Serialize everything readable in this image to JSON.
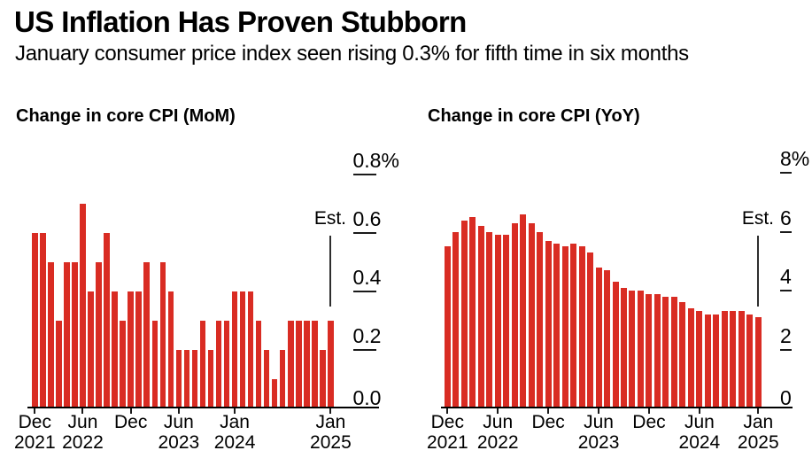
{
  "header": {
    "title": "US Inflation Has Proven Stubborn",
    "subtitle": "January consumer price index seen rising 0.3% for fifth time in six months"
  },
  "colors": {
    "bar": "#d92c23",
    "axis": "#000000",
    "tick": "#1a1a1a",
    "est_line": "#2e2e2e",
    "text": "#000000",
    "background": "#ffffff"
  },
  "chart_data": [
    {
      "type": "bar",
      "title": "Change in core CPI (MoM)",
      "ylabel": "",
      "xlabel": "",
      "ylim": [
        0,
        0.8
      ],
      "grid": false,
      "legend": "none",
      "categories": [
        "Dec 2021",
        "Jan 2022",
        "Feb 2022",
        "Mar 2022",
        "Apr 2022",
        "May 2022",
        "Jun 2022",
        "Jul 2022",
        "Aug 2022",
        "Sep 2022",
        "Oct 2022",
        "Nov 2022",
        "Dec 2022",
        "Jan 2023",
        "Feb 2023",
        "Mar 2023",
        "Apr 2023",
        "May 2023",
        "Jun 2023",
        "Jul 2023",
        "Aug 2023",
        "Sep 2023",
        "Oct 2023",
        "Nov 2023",
        "Dec 2023",
        "Jan 2024",
        "Feb 2024",
        "Mar 2024",
        "Apr 2024",
        "May 2024",
        "Jun 2024",
        "Jul 2024",
        "Aug 2024",
        "Sep 2024",
        "Oct 2024",
        "Nov 2024",
        "Dec 2024",
        "Jan 2025"
      ],
      "values": [
        0.6,
        0.6,
        0.5,
        0.3,
        0.5,
        0.5,
        0.7,
        0.4,
        0.5,
        0.6,
        0.4,
        0.3,
        0.4,
        0.4,
        0.5,
        0.3,
        0.5,
        0.4,
        0.2,
        0.2,
        0.2,
        0.3,
        0.2,
        0.3,
        0.3,
        0.4,
        0.4,
        0.4,
        0.3,
        0.2,
        0.1,
        0.2,
        0.3,
        0.3,
        0.3,
        0.3,
        0.2,
        0.3
      ],
      "estimate": {
        "label": "Est.",
        "category": "Jan 2025",
        "bar": 37,
        "value": 0.3
      },
      "yticks": [
        {
          "label": "0.8%",
          "value": 0.8
        },
        {
          "label": "0.6",
          "value": 0.6
        },
        {
          "label": "0.4",
          "value": 0.4
        },
        {
          "label": "0.2",
          "value": 0.2
        },
        {
          "label": "0.0",
          "value": 0.0
        }
      ],
      "xticks": [
        {
          "line1": "Dec",
          "line2": "2021",
          "bar": 0
        },
        {
          "line1": "Jun",
          "line2": "2022",
          "bar": 6
        },
        {
          "line1": "Dec",
          "line2": "",
          "bar": 12
        },
        {
          "line1": "Jun",
          "line2": "2023",
          "bar": 18
        },
        {
          "line1": "Jan",
          "line2": "2024",
          "bar": 25
        },
        {
          "line1": "Jan",
          "line2": "2025",
          "bar": 37
        }
      ]
    },
    {
      "type": "bar",
      "title": "Change in core CPI (YoY)",
      "ylabel": "",
      "xlabel": "",
      "ylim": [
        0,
        8
      ],
      "grid": false,
      "legend": "none",
      "categories": [
        "Dec 2021",
        "Jan 2022",
        "Feb 2022",
        "Mar 2022",
        "Apr 2022",
        "May 2022",
        "Jun 2022",
        "Jul 2022",
        "Aug 2022",
        "Sep 2022",
        "Oct 2022",
        "Nov 2022",
        "Dec 2022",
        "Jan 2023",
        "Feb 2023",
        "Mar 2023",
        "Apr 2023",
        "May 2023",
        "Jun 2023",
        "Jul 2023",
        "Aug 2023",
        "Sep 2023",
        "Oct 2023",
        "Nov 2023",
        "Dec 2023",
        "Jan 2024",
        "Feb 2024",
        "Mar 2024",
        "Apr 2024",
        "May 2024",
        "Jun 2024",
        "Jul 2024",
        "Aug 2024",
        "Sep 2024",
        "Oct 2024",
        "Nov 2024",
        "Dec 2024",
        "Jan 2025"
      ],
      "values": [
        5.5,
        6.0,
        6.4,
        6.5,
        6.2,
        6.0,
        5.9,
        5.9,
        6.3,
        6.6,
        6.3,
        6.0,
        5.7,
        5.6,
        5.5,
        5.6,
        5.5,
        5.3,
        4.8,
        4.7,
        4.3,
        4.1,
        4.0,
        4.0,
        3.9,
        3.9,
        3.8,
        3.8,
        3.6,
        3.4,
        3.3,
        3.2,
        3.2,
        3.3,
        3.3,
        3.3,
        3.2,
        3.1
      ],
      "estimate": {
        "label": "Est.",
        "category": "Jan 2025",
        "bar": 37,
        "value": 3.1
      },
      "yticks": [
        {
          "label": "8%",
          "value": 8
        },
        {
          "label": "6",
          "value": 6
        },
        {
          "label": "4",
          "value": 4
        },
        {
          "label": "2",
          "value": 2
        },
        {
          "label": "0",
          "value": 0
        }
      ],
      "xticks": [
        {
          "line1": "Dec",
          "line2": "2021",
          "bar": 0
        },
        {
          "line1": "Jun",
          "line2": "2022",
          "bar": 6
        },
        {
          "line1": "Dec",
          "line2": "",
          "bar": 12
        },
        {
          "line1": "Jun",
          "line2": "2023",
          "bar": 18
        },
        {
          "line1": "Dec",
          "line2": "",
          "bar": 24
        },
        {
          "line1": "Jun",
          "line2": "2024",
          "bar": 30
        },
        {
          "line1": "Jan",
          "line2": "2025",
          "bar": 37
        }
      ]
    }
  ]
}
